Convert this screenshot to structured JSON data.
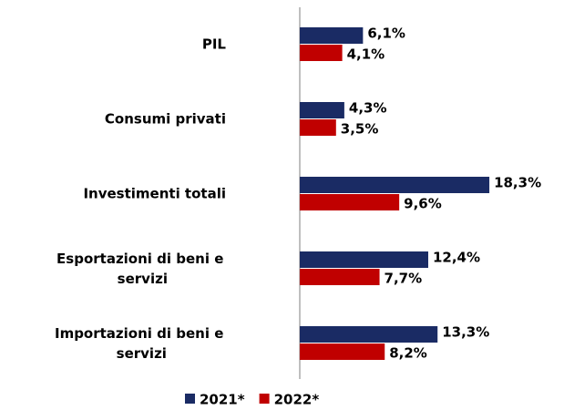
{
  "chart_data": {
    "type": "bar",
    "orientation": "horizontal",
    "categories": [
      "PIL",
      "Consumi privati",
      "Investimenti totali",
      "Esportazioni di beni e servizi",
      "Importazioni di beni e servizi"
    ],
    "series": [
      {
        "name": "2021*",
        "color": "#1a2b64",
        "values": [
          6.1,
          4.3,
          18.3,
          12.4,
          13.3
        ],
        "value_labels": [
          "6,1%",
          "4,3%",
          "18,3%",
          "12,4%",
          "13,3%"
        ]
      },
      {
        "name": "2022*",
        "color": "#c00000",
        "values": [
          4.1,
          3.5,
          9.6,
          7.7,
          8.2
        ],
        "value_labels": [
          "4,1%",
          "3,5%",
          "9,6%",
          "7,7%",
          "8,2%"
        ]
      }
    ],
    "legend": "bottom"
  }
}
